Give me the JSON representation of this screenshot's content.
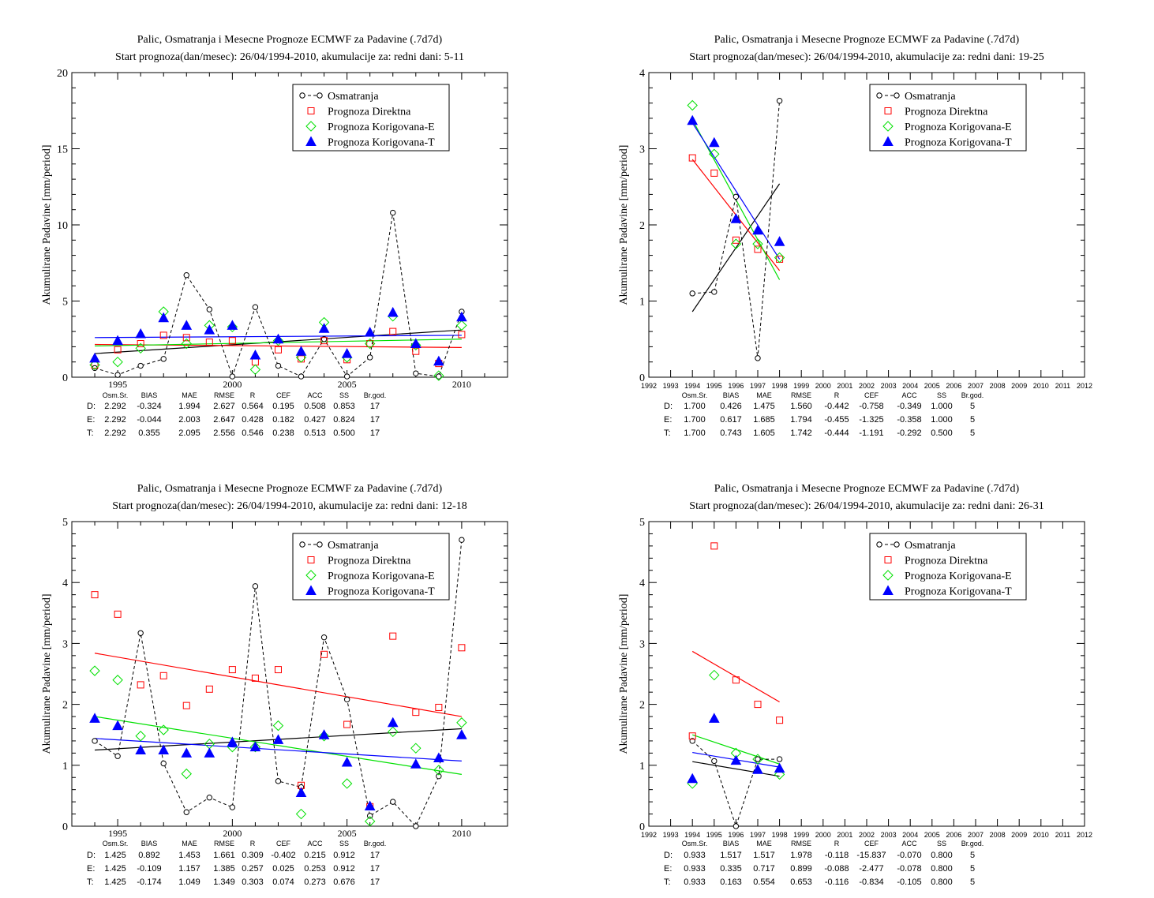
{
  "stat_headers": [
    "Osm.Sr.",
    "BIAS",
    "MAE",
    "RMSE",
    "R",
    "CEF",
    "ACC",
    "SS",
    "Br.god."
  ],
  "legend": [
    "Osmatranja",
    "Prognoza Direktna",
    "Prognoza Korigovana-E",
    "Prognoza Korigovana-T"
  ],
  "colors": {
    "obs": "#000000",
    "D": "#ff0000",
    "E": "#00e000",
    "T": "#0000ff"
  },
  "chart_data": [
    {
      "type": "scatter",
      "title": "Palic, Osmatranja i Mesecne Prognoze ECMWF za Padavine (.7d7d)",
      "subtitle": "Start prognoza(dan/mesec): 26/04/1994-2010, akumulacije za: redni dani: 5-11",
      "ylabel": "Akumulirane Padavine [mm/period]",
      "xlim": [
        1993,
        2012
      ],
      "ylim": [
        0,
        20
      ],
      "xticks": [
        1995,
        2000,
        2005,
        2010
      ],
      "yticks": [
        0,
        5,
        10,
        15,
        20
      ],
      "x": [
        1994,
        1995,
        1996,
        1997,
        1998,
        1999,
        2000,
        2001,
        2002,
        2003,
        2004,
        2005,
        2006,
        2007,
        2008,
        2009,
        2010
      ],
      "series": [
        {
          "name": "Osmatranja",
          "values": [
            0.6,
            0.15,
            0.75,
            1.2,
            6.7,
            4.45,
            0.05,
            4.6,
            0.75,
            0.05,
            2.5,
            0.05,
            1.3,
            10.8,
            0.25,
            0.05,
            4.3
          ]
        },
        {
          "name": "Prognoza Direktna",
          "values": [
            0.8,
            1.8,
            2.2,
            2.75,
            2.6,
            2.3,
            2.4,
            1.0,
            1.8,
            1.2,
            2.4,
            1.15,
            2.2,
            3.0,
            1.7,
            0.9,
            2.8
          ]
        },
        {
          "name": "Prognoza Korigovana-E",
          "values": [
            0.8,
            1.0,
            1.9,
            4.3,
            2.2,
            3.4,
            3.3,
            0.5,
            2.4,
            1.3,
            3.6,
            1.3,
            2.2,
            4.0,
            2.1,
            0.1,
            3.4
          ]
        },
        {
          "name": "Prognoza Korigovana-T",
          "values": [
            1.25,
            2.4,
            2.85,
            3.9,
            3.4,
            3.1,
            3.4,
            1.45,
            2.5,
            1.7,
            3.2,
            1.55,
            2.95,
            4.25,
            2.2,
            1.05,
            3.95
          ]
        }
      ],
      "trends": {
        "obs": [
          1.55,
          3.1
        ],
        "D": [
          2.15,
          1.95
        ],
        "E": [
          2.05,
          2.5
        ],
        "T": [
          2.6,
          2.75
        ]
      },
      "stats": [
        {
          "label": "D:",
          "values": [
            "2.292",
            "-0.324",
            "1.994",
            "2.627",
            "0.564",
            "0.195",
            "0.508",
            "0.853",
            "17"
          ]
        },
        {
          "label": "E:",
          "values": [
            "2.292",
            "-0.044",
            "2.003",
            "2.647",
            "0.428",
            "0.182",
            "0.427",
            "0.824",
            "17"
          ]
        },
        {
          "label": "T:",
          "values": [
            "2.292",
            "0.355",
            "2.095",
            "2.556",
            "0.546",
            "0.238",
            "0.513",
            "0.500",
            "17"
          ]
        }
      ]
    },
    {
      "type": "scatter",
      "title": "Palic, Osmatranja i Mesecne Prognoze ECMWF za Padavine (.7d7d)",
      "subtitle": "Start prognoza(dan/mesec): 26/04/1994-2010, akumulacije za: redni dani: 19-25",
      "ylabel": "Akumulirane Padavine [mm/period]",
      "xlim": [
        1992,
        2012
      ],
      "ylim": [
        0,
        4
      ],
      "xticks": [
        1992,
        1993,
        1994,
        1995,
        1996,
        1997,
        1998,
        1999,
        2000,
        2001,
        2002,
        2003,
        2004,
        2005,
        2006,
        2007,
        2008,
        2009,
        2010,
        2011,
        2012
      ],
      "yticks": [
        0,
        1,
        2,
        3,
        4
      ],
      "x": [
        1994,
        1995,
        1996,
        1997,
        1998
      ],
      "series": [
        {
          "name": "Osmatranja",
          "values": [
            1.1,
            1.12,
            2.37,
            0.25,
            3.63
          ]
        },
        {
          "name": "Prognoza Direktna",
          "values": [
            2.88,
            2.68,
            1.8,
            1.68,
            1.55
          ]
        },
        {
          "name": "Prognoza Korigovana-E",
          "values": [
            3.57,
            2.93,
            1.75,
            1.75,
            1.57
          ]
        },
        {
          "name": "Prognoza Korigovana-T",
          "values": [
            3.37,
            3.08,
            2.08,
            1.93,
            1.78
          ]
        }
      ],
      "trends": {
        "obs": [
          0.86,
          2.54
        ],
        "D": [
          2.86,
          1.4
        ],
        "E": [
          3.38,
          1.28
        ],
        "T": [
          3.34,
          1.55
        ]
      },
      "stats": [
        {
          "label": "D:",
          "values": [
            "1.700",
            "0.426",
            "1.475",
            "1.560",
            "-0.442",
            "-0.758",
            "-0.349",
            "1.000",
            "5"
          ]
        },
        {
          "label": "E:",
          "values": [
            "1.700",
            "0.617",
            "1.685",
            "1.794",
            "-0.455",
            "-1.325",
            "-0.358",
            "1.000",
            "5"
          ]
        },
        {
          "label": "T:",
          "values": [
            "1.700",
            "0.743",
            "1.605",
            "1.742",
            "-0.444",
            "-1.191",
            "-0.292",
            "0.500",
            "5"
          ]
        }
      ]
    },
    {
      "type": "scatter",
      "title": "Palic, Osmatranja i Mesecne Prognoze ECMWF za Padavine (.7d7d)",
      "subtitle": "Start prognoza(dan/mesec): 26/04/1994-2010, akumulacije za: redni dani: 12-18",
      "ylabel": "Akumulirane Padavine [mm/period]",
      "xlim": [
        1993,
        2012
      ],
      "ylim": [
        0,
        5
      ],
      "xticks": [
        1995,
        2000,
        2005,
        2010
      ],
      "yticks": [
        0,
        1,
        2,
        3,
        4,
        5
      ],
      "x": [
        1994,
        1995,
        1996,
        1997,
        1998,
        1999,
        2000,
        2001,
        2002,
        2003,
        2004,
        2005,
        2006,
        2007,
        2008,
        2009,
        2010
      ],
      "series": [
        {
          "name": "Osmatranja",
          "values": [
            1.4,
            1.15,
            3.17,
            1.03,
            0.23,
            0.47,
            0.31,
            3.94,
            0.74,
            0.64,
            3.1,
            2.08,
            0.17,
            0.4,
            0.0,
            0.82,
            4.7
          ]
        },
        {
          "name": "Prognoza Direktna",
          "values": [
            3.8,
            3.48,
            2.32,
            2.47,
            1.98,
            2.25,
            2.57,
            2.43,
            2.57,
            0.67,
            2.82,
            1.67,
            0.32,
            3.12,
            1.87,
            1.95,
            2.93
          ]
        },
        {
          "name": "Prognoza Korigovana-E",
          "values": [
            2.55,
            2.4,
            1.48,
            1.58,
            0.86,
            1.35,
            1.3,
            1.3,
            1.65,
            0.2,
            1.48,
            0.7,
            0.08,
            1.55,
            1.28,
            0.92,
            1.7
          ]
        },
        {
          "name": "Prognoza Korigovana-T",
          "values": [
            1.77,
            1.65,
            1.25,
            1.25,
            1.2,
            1.2,
            1.38,
            1.3,
            1.42,
            0.55,
            1.5,
            1.05,
            0.33,
            1.7,
            1.02,
            1.12,
            1.5
          ]
        }
      ],
      "trends": {
        "obs": [
          1.25,
          1.6
        ],
        "D": [
          2.84,
          1.8
        ],
        "E": [
          1.8,
          0.85
        ],
        "T": [
          1.44,
          1.07
        ]
      },
      "stats": [
        {
          "label": "D:",
          "values": [
            "1.425",
            "0.892",
            "1.453",
            "1.661",
            "0.309",
            "-0.402",
            "0.215",
            "0.912",
            "17"
          ]
        },
        {
          "label": "E:",
          "values": [
            "1.425",
            "-0.109",
            "1.157",
            "1.385",
            "0.257",
            "0.025",
            "0.253",
            "0.912",
            "17"
          ]
        },
        {
          "label": "T:",
          "values": [
            "1.425",
            "-0.174",
            "1.049",
            "1.349",
            "0.303",
            "0.074",
            "0.273",
            "0.676",
            "17"
          ]
        }
      ]
    },
    {
      "type": "scatter",
      "title": "Palic, Osmatranja i Mesecne Prognoze ECMWF za Padavine (.7d7d)",
      "subtitle": "Start prognoza(dan/mesec): 26/04/1994-2010, akumulacije za: redni dani: 26-31",
      "ylabel": "Akumulirane Padavine [mm/period]",
      "xlim": [
        1992,
        2012
      ],
      "ylim": [
        0,
        5
      ],
      "xticks": [
        1992,
        1993,
        1994,
        1995,
        1996,
        1997,
        1998,
        1999,
        2000,
        2001,
        2002,
        2003,
        2004,
        2005,
        2006,
        2007,
        2008,
        2009,
        2010,
        2011,
        2012
      ],
      "yticks": [
        0,
        1,
        2,
        3,
        4,
        5
      ],
      "x": [
        1994,
        1995,
        1996,
        1997,
        1998
      ],
      "series": [
        {
          "name": "Osmatranja",
          "values": [
            1.4,
            1.07,
            0.0,
            1.1,
            1.1
          ]
        },
        {
          "name": "Prognoza Direktna",
          "values": [
            1.48,
            4.6,
            2.4,
            2.0,
            1.74
          ]
        },
        {
          "name": "Prognoza Korigovana-E",
          "values": [
            0.7,
            2.48,
            1.2,
            1.1,
            0.85
          ]
        },
        {
          "name": "Prognoza Korigovana-T",
          "values": [
            0.78,
            1.77,
            1.08,
            0.93,
            0.95
          ]
        }
      ],
      "trends": {
        "obs": [
          1.06,
          0.82
        ],
        "D": [
          2.87,
          2.04
        ],
        "E": [
          1.5,
          1.02
        ],
        "T": [
          1.21,
          0.97
        ]
      },
      "stats": [
        {
          "label": "D:",
          "values": [
            "0.933",
            "1.517",
            "1.517",
            "1.978",
            "-0.118",
            "-15.837",
            "-0.070",
            "0.800",
            "5"
          ]
        },
        {
          "label": "E:",
          "values": [
            "0.933",
            "0.335",
            "0.717",
            "0.899",
            "-0.088",
            "-2.477",
            "-0.078",
            "0.800",
            "5"
          ]
        },
        {
          "label": "T:",
          "values": [
            "0.933",
            "0.163",
            "0.554",
            "0.653",
            "-0.116",
            "-0.834",
            "-0.105",
            "0.800",
            "5"
          ]
        }
      ]
    }
  ]
}
